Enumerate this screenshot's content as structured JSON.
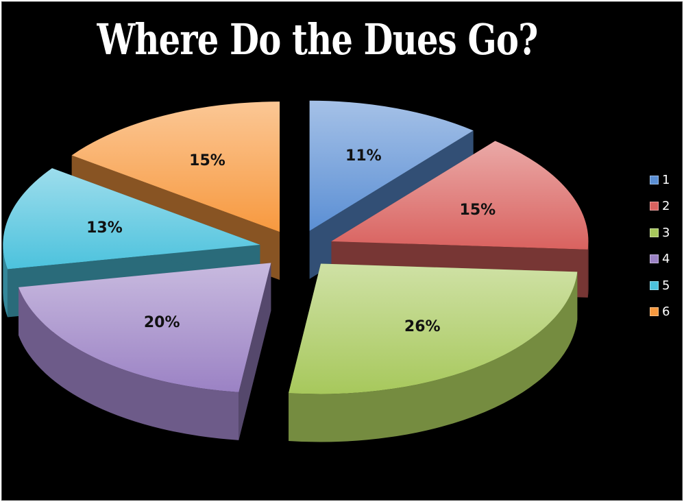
{
  "chart_data": {
    "type": "pie",
    "title": "Where Do the Dues Go?",
    "categories": [
      "1",
      "2",
      "3",
      "4",
      "5",
      "6"
    ],
    "values": [
      11,
      15,
      26,
      20,
      13,
      15
    ],
    "labels": [
      "11%",
      "15%",
      "26%",
      "20%",
      "13%",
      "15%"
    ],
    "colors": [
      "#5b8fd4",
      "#d9625f",
      "#a7c85c",
      "#9b82c4",
      "#4cc2dd",
      "#f7993f"
    ],
    "exploded": true,
    "three_d": true,
    "legend_position": "right"
  }
}
